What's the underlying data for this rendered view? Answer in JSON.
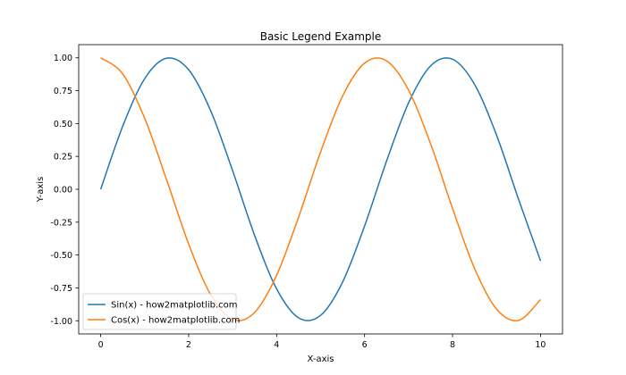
{
  "chart_data": {
    "type": "line",
    "title": "Basic Legend Example",
    "xlabel": "X-axis",
    "ylabel": "Y-axis",
    "xlim": [
      -0.5,
      10.5
    ],
    "ylim": [
      -1.1,
      1.1
    ],
    "x_ticks": [
      0,
      2,
      4,
      6,
      8,
      10
    ],
    "x_tick_labels": [
      "0",
      "2",
      "4",
      "6",
      "8",
      "10"
    ],
    "y_ticks": [
      1.0,
      0.75,
      0.5,
      0.25,
      0.0,
      -0.25,
      -0.5,
      -0.75,
      -1.0
    ],
    "y_tick_labels": [
      "1.00",
      "0.75",
      "0.50",
      "0.25",
      "0.00",
      "-0.25",
      "-0.50",
      "-0.75",
      "-1.00"
    ],
    "grid": false,
    "legend_position": "lower-left",
    "x": [
      0,
      0.5,
      1,
      1.5,
      2,
      2.5,
      3,
      3.5,
      4,
      4.5,
      5,
      5.5,
      6,
      6.5,
      7,
      7.5,
      8,
      8.5,
      9,
      9.5,
      10
    ],
    "series": [
      {
        "name": "Sin(x) - how2matplotlib.com",
        "color": "#1f77b4",
        "values": [
          0.0,
          0.479,
          0.841,
          0.997,
          0.909,
          0.598,
          0.141,
          -0.351,
          -0.757,
          -0.978,
          -0.959,
          -0.706,
          -0.279,
          0.215,
          0.657,
          0.938,
          0.989,
          0.798,
          0.412,
          -0.075,
          -0.544
        ]
      },
      {
        "name": "Cos(x) - how2matplotlib.com",
        "color": "#ff7f0e",
        "values": [
          1.0,
          0.878,
          0.54,
          0.071,
          -0.416,
          -0.801,
          -0.99,
          -0.936,
          -0.654,
          -0.211,
          0.284,
          0.709,
          0.96,
          0.977,
          0.754,
          0.347,
          -0.146,
          -0.602,
          -0.911,
          -0.997,
          -0.839
        ]
      }
    ]
  }
}
